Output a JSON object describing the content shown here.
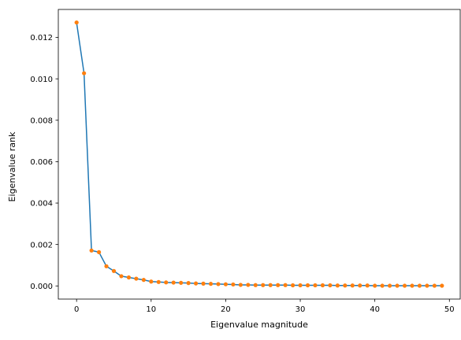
{
  "chart_data": {
    "type": "line",
    "xlabel": "Eigenvalue magnitude",
    "ylabel": "Eigenvalue rank",
    "xlim": [
      -2.45,
      51.45
    ],
    "ylim": [
      -0.000635,
      0.01335
    ],
    "xticks": [
      0,
      10,
      20,
      30,
      40,
      50
    ],
    "xtick_labels": [
      "0",
      "10",
      "20",
      "30",
      "40",
      "50"
    ],
    "yticks": [
      0.0,
      0.002,
      0.004,
      0.006,
      0.008,
      0.01,
      0.012
    ],
    "ytick_labels": [
      "0.000",
      "0.002",
      "0.004",
      "0.006",
      "0.008",
      "0.010",
      "0.012"
    ],
    "grid": false,
    "legend": "none",
    "x": [
      0,
      1,
      2,
      3,
      4,
      5,
      6,
      7,
      8,
      9,
      10,
      11,
      12,
      13,
      14,
      15,
      16,
      17,
      18,
      19,
      20,
      21,
      22,
      23,
      24,
      25,
      26,
      27,
      28,
      29,
      30,
      31,
      32,
      33,
      34,
      35,
      36,
      37,
      38,
      39,
      40,
      41,
      42,
      43,
      44,
      45,
      46,
      47,
      48,
      49
    ],
    "series": [
      {
        "line_color": "#1f77b4",
        "marker_color": "#ff7f0e",
        "values": [
          0.01272,
          0.01027,
          0.00171,
          0.00163,
          0.00095,
          0.00072,
          0.00047,
          0.00041,
          0.00035,
          0.00029,
          0.00021,
          0.00019,
          0.00017,
          0.00016,
          0.00015,
          0.00014,
          0.00012,
          0.00011,
          0.0001,
          9e-05,
          8e-05,
          7e-05,
          5e-05,
          5e-05,
          4e-05,
          4e-05,
          4e-05,
          4e-05,
          4e-05,
          3e-05,
          3e-05,
          3e-05,
          3e-05,
          3e-05,
          3e-05,
          2e-05,
          2e-05,
          2e-05,
          2e-05,
          2e-05,
          1e-05,
          1e-05,
          1e-05,
          1e-05,
          1e-05,
          1e-05,
          1e-05,
          1e-05,
          1e-05,
          1e-05
        ]
      }
    ]
  }
}
